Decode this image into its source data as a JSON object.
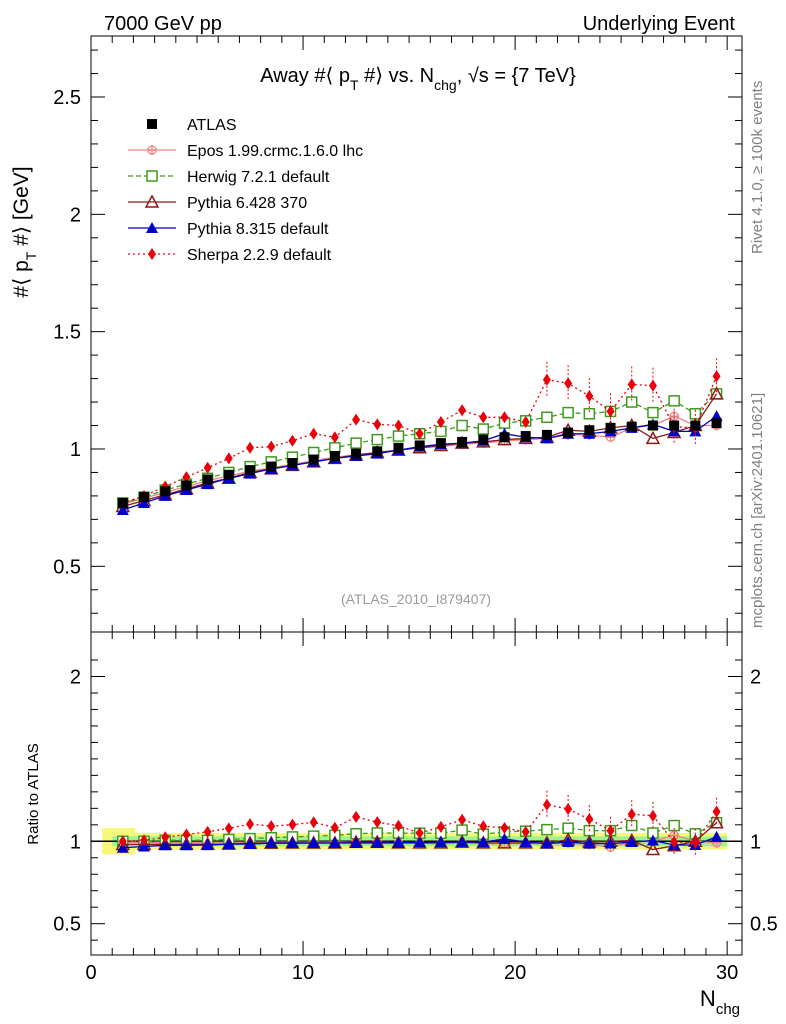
{
  "header": {
    "left": "7000 GeV pp",
    "right": "Underlying Event",
    "side_top": "Rivet 4.1.0, ≥ 100k events",
    "side_bottom": "mcplots.cern.ch [arXiv:2401.10621]"
  },
  "chart_data": [
    {
      "type": "scatter",
      "title": "Away #⟨ p_T #⟩ vs. N_chg, √s = {7 TeV}",
      "title_main": "Away #⟨ p",
      "title_sub1": "T",
      "title_mid": " #⟩ vs. N",
      "title_sub2": "chg",
      "title_end": ", √s = {7 TeV}",
      "ylabel": "#⟨ p_T #⟩ [GeV]",
      "ylabel_main": "#⟨ p",
      "ylabel_sub": "T",
      "ylabel_end": " #⟩ [GeV]",
      "watermark": "(ATLAS_2010_I879407)",
      "xlim": [
        0,
        30.7
      ],
      "ylim": [
        0.22,
        2.76
      ],
      "yticks": [
        0.5,
        1,
        1.5,
        2,
        2.5
      ],
      "ytick_labels": [
        "0.5",
        "1",
        "1.5",
        "2",
        "2.5"
      ],
      "legend_position": "top-left",
      "x": [
        1.5,
        2.5,
        3.5,
        4.5,
        5.5,
        6.5,
        7.5,
        8.5,
        9.5,
        10.5,
        11.5,
        12.5,
        13.5,
        14.5,
        15.5,
        16.5,
        17.5,
        18.5,
        19.5,
        20.5,
        21.5,
        22.5,
        23.5,
        24.5,
        25.5,
        26.5,
        27.5,
        28.5,
        29.5
      ],
      "series": [
        {
          "name": "ATLAS",
          "color": "#000000",
          "marker": "square-filled",
          "line": "none",
          "values": [
            0.77,
            0.795,
            0.82,
            0.845,
            0.87,
            0.89,
            0.91,
            0.925,
            0.94,
            0.955,
            0.97,
            0.98,
            0.99,
            1.005,
            1.015,
            1.025,
            1.03,
            1.04,
            1.05,
            1.055,
            1.06,
            1.07,
            1.08,
            1.09,
            1.095,
            1.1,
            1.1,
            1.1,
            1.11
          ]
        },
        {
          "name": "Epos 1.99.crmc.1.6.0 lhc",
          "color": "#f08080",
          "marker": "cross-circle",
          "line": "solid",
          "values": [
            0.765,
            0.79,
            0.815,
            0.84,
            0.865,
            0.885,
            0.905,
            0.92,
            0.935,
            0.95,
            0.965,
            0.975,
            0.985,
            0.995,
            1.005,
            1.01,
            1.02,
            1.025,
            1.035,
            1.04,
            1.045,
            1.06,
            1.06,
            1.05,
            1.09,
            1.1,
            1.14,
            1.1,
            1.1
          ]
        },
        {
          "name": "Herwig 7.2.1 default",
          "color": "#3f9a1e",
          "marker": "square-open",
          "line": "dashed",
          "values": [
            0.77,
            0.795,
            0.825,
            0.85,
            0.875,
            0.9,
            0.925,
            0.945,
            0.965,
            0.985,
            1.005,
            1.025,
            1.04,
            1.055,
            1.065,
            1.075,
            1.1,
            1.085,
            1.11,
            1.12,
            1.135,
            1.155,
            1.15,
            1.16,
            1.2,
            1.155,
            1.205,
            1.15,
            1.235
          ]
        },
        {
          "name": "Pythia 6.428 370",
          "color": "#8b1a1a",
          "marker": "triangle-open",
          "line": "solid",
          "values": [
            0.755,
            0.78,
            0.805,
            0.83,
            0.855,
            0.875,
            0.9,
            0.915,
            0.93,
            0.945,
            0.96,
            0.975,
            0.985,
            0.995,
            1.005,
            1.015,
            1.025,
            1.03,
            1.04,
            1.045,
            1.05,
            1.08,
            1.075,
            1.09,
            1.1,
            1.045,
            1.07,
            1.1,
            1.235
          ]
        },
        {
          "name": "Pythia 8.315 default",
          "color": "#0000cc",
          "marker": "triangle-filled",
          "line": "solid",
          "values": [
            0.74,
            0.77,
            0.8,
            0.825,
            0.85,
            0.875,
            0.895,
            0.915,
            0.93,
            0.945,
            0.96,
            0.97,
            0.98,
            0.995,
            1.01,
            1.02,
            1.025,
            1.035,
            1.065,
            1.05,
            1.045,
            1.065,
            1.065,
            1.075,
            1.09,
            1.105,
            1.075,
            1.075,
            1.14
          ]
        },
        {
          "name": "Sherpa 2.2.9 default",
          "color": "#e8000b",
          "marker": "diamond-filled",
          "line": "dotted",
          "values": [
            0.77,
            0.8,
            0.84,
            0.88,
            0.92,
            0.96,
            1.005,
            1.01,
            1.035,
            1.065,
            1.05,
            1.125,
            1.105,
            1.1,
            1.065,
            1.115,
            1.165,
            1.135,
            1.135,
            1.115,
            1.295,
            1.28,
            1.225,
            1.16,
            1.275,
            1.27,
            1.095,
            1.09,
            1.31
          ]
        }
      ]
    },
    {
      "type": "scatter",
      "ylabel": "Ratio to ATLAS",
      "xlabel": "N_chg",
      "xlabel_main": "N",
      "xlabel_sub": "chg",
      "xlim": [
        0,
        30.7
      ],
      "ylim": [
        0.31,
        2.27
      ],
      "xticks": [
        0,
        10,
        20,
        30
      ],
      "xtick_labels": [
        "0",
        "10",
        "20",
        "30"
      ],
      "yticks": [
        0.5,
        1,
        2
      ],
      "ytick_labels": [
        "0.5",
        "1",
        "2"
      ],
      "reference": 1,
      "band_inner": 0.03,
      "band_outer": 0.05,
      "first_bin_band_outer": 0.08,
      "note": "ratios derived as series / ATLAS"
    }
  ]
}
